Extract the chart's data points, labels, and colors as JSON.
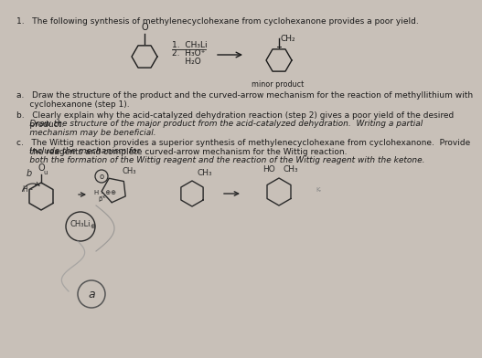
{
  "bg_color": "#c8c0b8",
  "page_color": "#e8e4de",
  "title": "1.   The following synthesis of methylenecyclohexane from cyclohexanone provides a poor yield.",
  "reagent1": "1.  CH₃Li",
  "reagent2": "2.  H₃O⁺",
  "reagent3": "     H₂O",
  "minor_product": "minor product",
  "qa": "a.   Draw the structure of the product and the curved-arrow mechanism for the reaction of methyllithium with\n     cyclohexanone (step 1).",
  "qb_normal": "b.   Clearly explain why the acid-catalyzed dehydration reaction (step 2) gives a poor yield of the desired\n     product.  ",
  "qb_italic": "Draw the structure of the major product from the acid-catalyzed dehydration.  Writing a partial\n     mechanism may be beneficial.",
  "qc_normal": "c.   The Wittig reaction provides a superior synthesis of methylenecyclohexane from cyclohexanone.  Provide\n     the reagents and complete curved-arrow mechanism for the Wittig reaction.  ",
  "qc_italic": "Include the mechanism for\n     both the formation of the Wittig reagent and the reaction of the Wittig reagent with the ketone.",
  "text_color": "#1a1a1a",
  "draw_color": "#2a2a2a",
  "font_size": 6.5,
  "font_size_small": 5.8
}
